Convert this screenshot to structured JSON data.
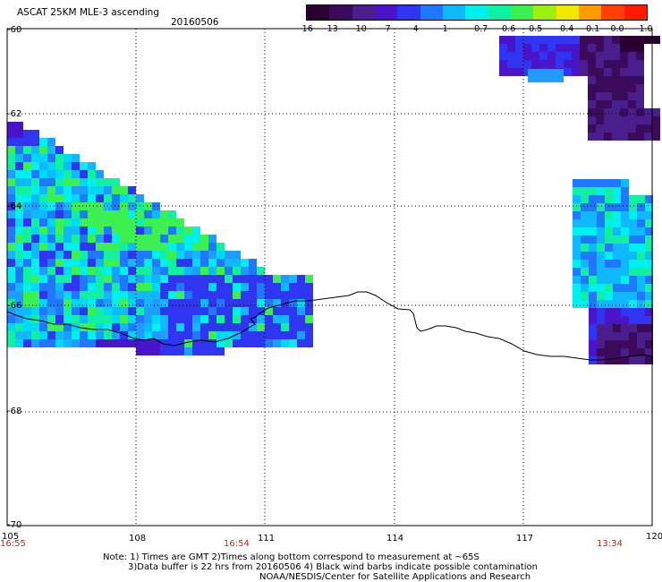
{
  "title": "ASCAT 25KM MLE-3 ascending",
  "date": "20160506",
  "colorbar": {
    "labels": [
      "-16",
      "-13",
      "-10",
      "-7",
      "-4",
      "-1",
      "-0.7",
      "-0.6",
      "-0.5",
      "-0.4",
      "-0.1",
      "0.0",
      "1.0"
    ],
    "colors": [
      "#2a0030",
      "#3c0a5a",
      "#4a1e8c",
      "#4a14c8",
      "#2f35f0",
      "#1f78ff",
      "#10b8ff",
      "#00f0f0",
      "#10f0a0",
      "#3cf050",
      "#9cf010",
      "#f0e800",
      "#ff9a00",
      "#ff4000",
      "#ff1a00"
    ]
  },
  "map": {
    "lat_labels": [
      "-60",
      "-62",
      "-64",
      "-66",
      "-68",
      "-70"
    ],
    "lon_labels": [
      "105",
      "108",
      "111",
      "114",
      "117",
      "120"
    ],
    "time_labels": [
      "16:55",
      "16:54",
      "13:34"
    ]
  },
  "notes": [
    "Note: 1) Times are GMT 2)Times along bottom correspond to measurement at ~65S",
    "3)Data buffer is 22 hrs from 20160506 4) Black wind barbs indicate possible contamination",
    "NOAA/NESDIS/Center for Satellite Applications and Research"
  ]
}
